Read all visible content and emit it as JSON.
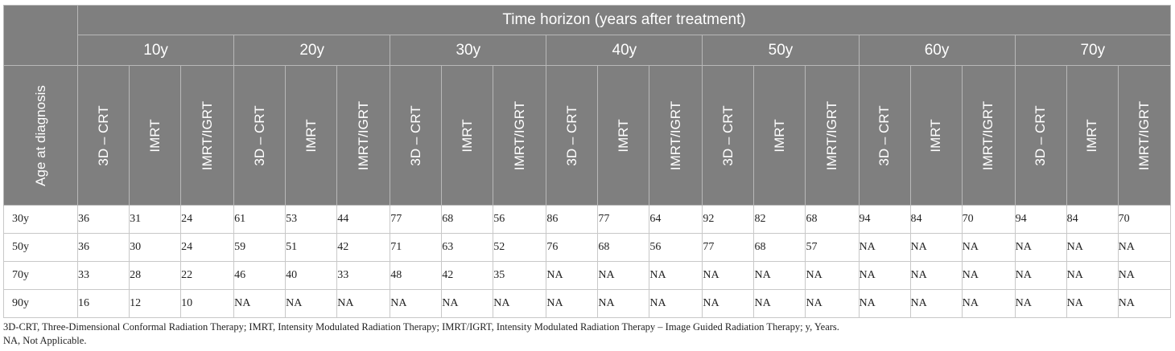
{
  "table": {
    "group_header": "Time horizon (years after treatment)",
    "row_header_label": "Age at diagnosis",
    "horizons": [
      "10y",
      "20y",
      "30y",
      "40y",
      "50y",
      "60y",
      "70y"
    ],
    "modalities": [
      "3D – CRT",
      "IMRT",
      "IMRT/IGRT"
    ],
    "rows": [
      {
        "age": "30y",
        "values": [
          "36",
          "31",
          "24",
          "61",
          "53",
          "44",
          "77",
          "68",
          "56",
          "86",
          "77",
          "64",
          "92",
          "82",
          "68",
          "94",
          "84",
          "70",
          "94",
          "84",
          "70"
        ]
      },
      {
        "age": "50y",
        "values": [
          "36",
          "30",
          "24",
          "59",
          "51",
          "42",
          "71",
          "63",
          "52",
          "76",
          "68",
          "56",
          "77",
          "68",
          "57",
          "NA",
          "NA",
          "NA",
          "NA",
          "NA",
          "NA"
        ]
      },
      {
        "age": "70y",
        "values": [
          "33",
          "28",
          "22",
          "46",
          "40",
          "33",
          "48",
          "42",
          "35",
          "NA",
          "NA",
          "NA",
          "NA",
          "NA",
          "NA",
          "NA",
          "NA",
          "NA",
          "NA",
          "NA",
          "NA"
        ]
      },
      {
        "age": "90y",
        "values": [
          "16",
          "12",
          "10",
          "NA",
          "NA",
          "NA",
          "NA",
          "NA",
          "NA",
          "NA",
          "NA",
          "NA",
          "NA",
          "NA",
          "NA",
          "NA",
          "NA",
          "NA",
          "NA",
          "NA",
          "NA"
        ]
      }
    ]
  },
  "footnotes": [
    "3D-CRT, Three-Dimensional Conformal Radiation Therapy; IMRT, Intensity Modulated Radiation Therapy; IMRT/IGRT, Intensity Modulated Radiation Therapy – Image Guided Radiation Therapy; y, Years.",
    "NA, Not Applicable."
  ]
}
